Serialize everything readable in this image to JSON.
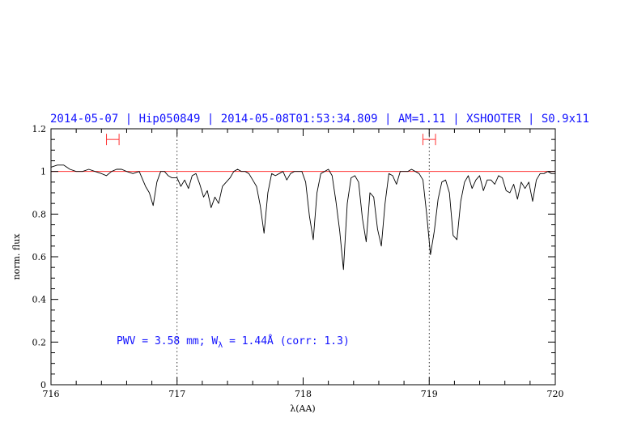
{
  "chart_data": {
    "type": "line",
    "title": "2014-05-07 | Hip050849 | 2014-05-08T01:53:34.809 | AM=1.11 | XSHOOTER | S0.9x11",
    "xlabel": "λ(AA)",
    "ylabel": "norm. flux",
    "xlim": [
      716,
      720
    ],
    "ylim": [
      0,
      1.2
    ],
    "x_ticks": [
      716,
      717,
      718,
      719,
      720
    ],
    "x_tick_labels": [
      "716",
      "717",
      "718",
      "719",
      "720"
    ],
    "y_ticks": [
      0,
      0.2,
      0.4,
      0.6,
      0.8,
      1,
      1.2
    ],
    "y_tick_labels": [
      "0",
      "0.2",
      "0.4",
      "0.6",
      "0.8",
      "1",
      "1.2"
    ],
    "annotation": {
      "prefix": "PWV = 3.58 mm; W",
      "subscript": "λ",
      "suffix": " = 1.44Å (corr: 1.3)",
      "x": 716.52,
      "y": 0.19
    },
    "reference_line": {
      "y": 1.0,
      "color": "#ff3030"
    },
    "vertical_markers": [
      717.0,
      719.0
    ],
    "continuum_windows": [
      {
        "x0": 716.44,
        "x1": 716.54,
        "y": 1.15
      },
      {
        "x0": 718.95,
        "x1": 719.05,
        "y": 1.15
      }
    ],
    "series": [
      {
        "color": "#000000",
        "x": [
          716.0,
          716.05,
          716.1,
          716.15,
          716.2,
          716.25,
          716.3,
          716.35,
          716.4,
          716.44,
          716.48,
          716.52,
          716.56,
          716.6,
          716.65,
          716.7,
          716.75,
          716.78,
          716.81,
          716.84,
          716.87,
          716.9,
          716.93,
          716.96,
          717.0,
          717.03,
          717.06,
          717.09,
          717.12,
          717.15,
          717.18,
          717.21,
          717.24,
          717.27,
          717.3,
          717.33,
          717.36,
          717.39,
          717.42,
          717.45,
          717.48,
          717.51,
          717.54,
          717.57,
          717.6,
          717.63,
          717.66,
          717.69,
          717.72,
          717.75,
          717.78,
          717.81,
          717.84,
          717.87,
          717.9,
          717.93,
          717.96,
          717.99,
          718.02,
          718.05,
          718.08,
          718.11,
          718.14,
          718.17,
          718.2,
          718.23,
          718.26,
          718.29,
          718.32,
          718.35,
          718.38,
          718.41,
          718.44,
          718.47,
          718.5,
          718.53,
          718.56,
          718.59,
          718.62,
          718.65,
          718.68,
          718.71,
          718.74,
          718.77,
          718.8,
          718.83,
          718.86,
          718.89,
          718.92,
          718.95,
          718.98,
          719.01,
          719.04,
          719.07,
          719.1,
          719.13,
          719.16,
          719.19,
          719.22,
          719.25,
          719.28,
          719.31,
          719.34,
          719.37,
          719.4,
          719.43,
          719.46,
          719.49,
          719.52,
          719.55,
          719.58,
          719.61,
          719.64,
          719.67,
          719.7,
          719.73,
          719.76,
          719.79,
          719.82,
          719.85,
          719.88,
          719.91,
          719.94,
          719.97,
          720.0
        ],
        "y": [
          1.02,
          1.03,
          1.03,
          1.01,
          1.0,
          1.0,
          1.01,
          1.0,
          0.99,
          0.98,
          1.0,
          1.01,
          1.01,
          1.0,
          0.99,
          1.0,
          0.93,
          0.9,
          0.84,
          0.95,
          1.0,
          1.0,
          0.98,
          0.97,
          0.97,
          0.93,
          0.96,
          0.92,
          0.98,
          0.99,
          0.94,
          0.88,
          0.91,
          0.83,
          0.88,
          0.85,
          0.93,
          0.95,
          0.97,
          1.0,
          1.01,
          1.0,
          1.0,
          0.99,
          0.96,
          0.93,
          0.84,
          0.71,
          0.9,
          0.99,
          0.98,
          0.99,
          1.0,
          0.96,
          0.99,
          1.0,
          1.0,
          1.0,
          0.95,
          0.79,
          0.68,
          0.9,
          0.99,
          1.0,
          1.01,
          0.98,
          0.86,
          0.72,
          0.54,
          0.85,
          0.97,
          0.98,
          0.95,
          0.78,
          0.67,
          0.9,
          0.88,
          0.73,
          0.65,
          0.85,
          0.99,
          0.98,
          0.94,
          1.0,
          1.0,
          1.0,
          1.01,
          1.0,
          0.99,
          0.96,
          0.8,
          0.61,
          0.72,
          0.87,
          0.95,
          0.96,
          0.9,
          0.7,
          0.68,
          0.86,
          0.95,
          0.98,
          0.92,
          0.96,
          0.98,
          0.91,
          0.96,
          0.96,
          0.94,
          0.98,
          0.97,
          0.91,
          0.9,
          0.94,
          0.87,
          0.95,
          0.92,
          0.95,
          0.86,
          0.96,
          0.99,
          0.99,
          1.0,
          0.99,
          0.99
        ]
      }
    ]
  }
}
